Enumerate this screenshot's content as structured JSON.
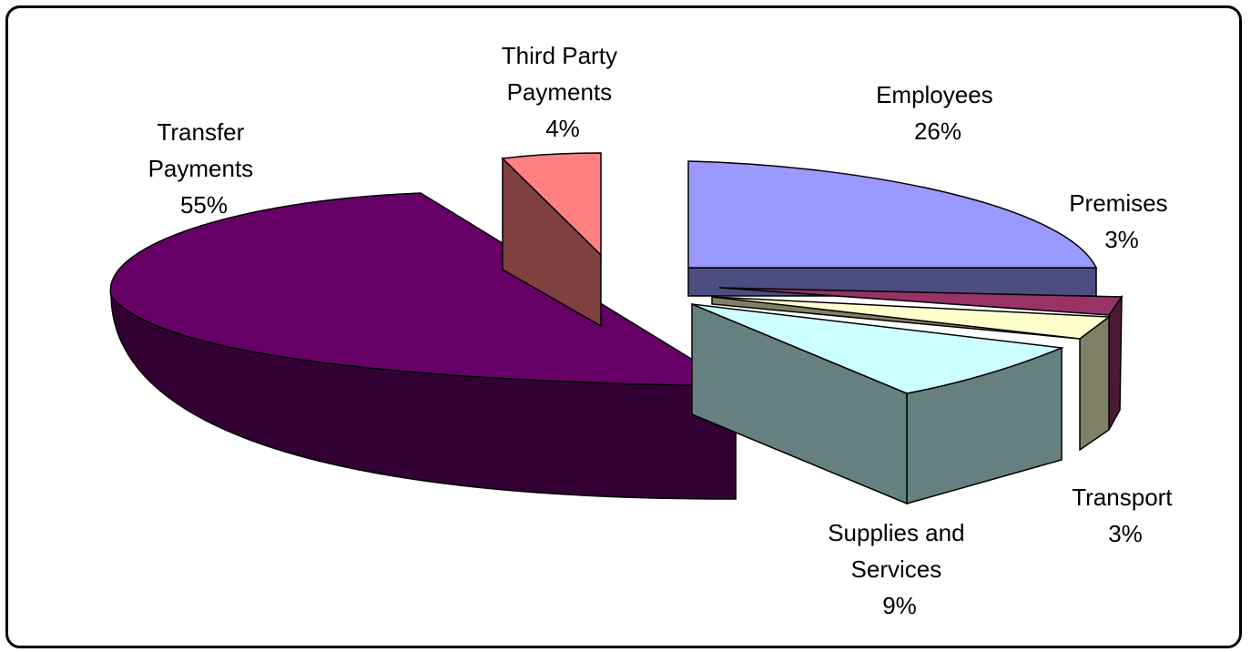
{
  "chart_data": {
    "type": "pie",
    "style": "3d-exploded",
    "slices": [
      {
        "name": "Transfer Payments",
        "label": [
          "Transfer",
          "Payments"
        ],
        "value": 55,
        "value_label": "55%",
        "color": "#660066"
      },
      {
        "name": "Third Party Payments",
        "label": [
          "Third Party",
          "Payments"
        ],
        "value": 4,
        "value_label": "4%",
        "color": "#FF8080"
      },
      {
        "name": "Employees",
        "label": [
          "Employees"
        ],
        "value": 26,
        "value_label": "26%",
        "color": "#9999FF"
      },
      {
        "name": "Premises",
        "label": [
          "Premises"
        ],
        "value": 3,
        "value_label": "3%",
        "color": "#993366"
      },
      {
        "name": "Transport",
        "label": [
          "Transport"
        ],
        "value": 3,
        "value_label": "3%",
        "color": "#FFFFCC"
      },
      {
        "name": "Supplies and Services",
        "label": [
          "Supplies and",
          "Services"
        ],
        "value": 9,
        "value_label": "9%",
        "color": "#CCFFFF"
      }
    ]
  }
}
